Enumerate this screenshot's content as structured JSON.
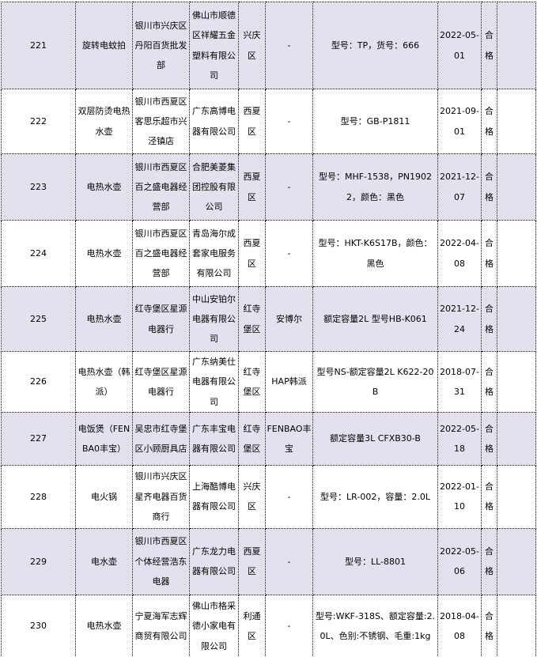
{
  "table": {
    "result_pass_color": "#e5e0ed",
    "rows": [
      {
        "no": "221",
        "product": "旋转电蚊拍",
        "seller": "银川市兴庆区丹阳百货批发部",
        "manufacturer": "佛山市顺德区祥耀五金塑料有限公司",
        "district": "兴庆区",
        "brand": "-",
        "spec": "型号：TP，货号：666",
        "date": "2022-05-01",
        "result": "合格",
        "blank": ""
      },
      {
        "no": "222",
        "product": "双层防烫电热水壶",
        "seller": "银川市西夏区客思乐超市兴泾镇店",
        "manufacturer": "广东高博电器有限公司",
        "district": "西夏区",
        "brand": "-",
        "spec": "型号：GB-P1811",
        "date": "2021-09-01",
        "result": "合格",
        "blank": ""
      },
      {
        "no": "223",
        "product": "电热水壶",
        "seller": "银川市西夏区百之盛电器经营部",
        "manufacturer": "合肥美菱集团控股有限公司",
        "district": "西夏区",
        "brand": "-",
        "spec": "型号：MHF-1538，PN19022，颜色：黑色",
        "date": "2021-12-07",
        "result": "合格",
        "blank": ""
      },
      {
        "no": "224",
        "product": "电热水壶",
        "seller": "银川市西夏区百之盛电器经营部",
        "manufacturer": "青岛海尔成套家电服务有限公司",
        "district": "西夏区",
        "brand": "-",
        "spec": "型号：HKT-K6S17B，颜色：黑色",
        "date": "2022-04-08",
        "result": "合格",
        "blank": ""
      },
      {
        "no": "225",
        "product": "电热水壶",
        "seller": "红寺堡区星源电器行",
        "manufacturer": "中山安铂尔电器有限公司",
        "district": "红寺堡区",
        "brand": "安博尔",
        "spec": "额定容量2L 型号HB-K061",
        "date": "2021-12-24",
        "result": "合格",
        "blank": ""
      },
      {
        "no": "226",
        "product": "电热水壶（韩派）",
        "seller": "红寺堡区星源电器行",
        "manufacturer": "广东纳美仕电器有限公司",
        "district": "红寺堡区",
        "brand": "HAP韩派",
        "spec": "型号NS-额定容量2L K622-20B",
        "date": "2018-07-31",
        "result": "合格",
        "blank": ""
      },
      {
        "no": "227",
        "product": "电饭煲（FENBA0丰宝）",
        "seller": "吴忠市红寺堡区小顾厨具店",
        "manufacturer": "广东丰宝电器有限公司",
        "district": "红寺堡区",
        "brand": "FENBAO丰宝",
        "spec": "额定容量3L CFXB30-B",
        "date": "2022-05-18",
        "result": "合格",
        "blank": ""
      },
      {
        "no": "228",
        "product": "电火锅",
        "seller": "银川市兴庆区星齐电器百货商行",
        "manufacturer": "上海酷博电器有限公司",
        "district": "兴庆区",
        "brand": "-",
        "spec": "型号：LR-002，容量：2.0L",
        "date": "2022-01-10",
        "result": "合格",
        "blank": ""
      },
      {
        "no": "229",
        "product": "电水壶",
        "seller": "银川市西夏区个体经营浩东电器",
        "manufacturer": "广东龙力电器有限公司",
        "district": "西夏区",
        "brand": "-",
        "spec": "型号：LL-8801",
        "date": "2022-05-06",
        "result": "合格",
        "blank": ""
      },
      {
        "no": "230",
        "product": "电热水壶",
        "seller": "宁夏海军志辉商贸有限公司",
        "manufacturer": "佛山市格采德小家电有限公司",
        "district": "利通区",
        "brand": "-",
        "spec": "型号:WKF-318S、额定容量:2.0L、色别:不锈钢、毛重:1kg",
        "date": "2018-04-08",
        "result": "合格",
        "blank": ""
      }
    ]
  }
}
